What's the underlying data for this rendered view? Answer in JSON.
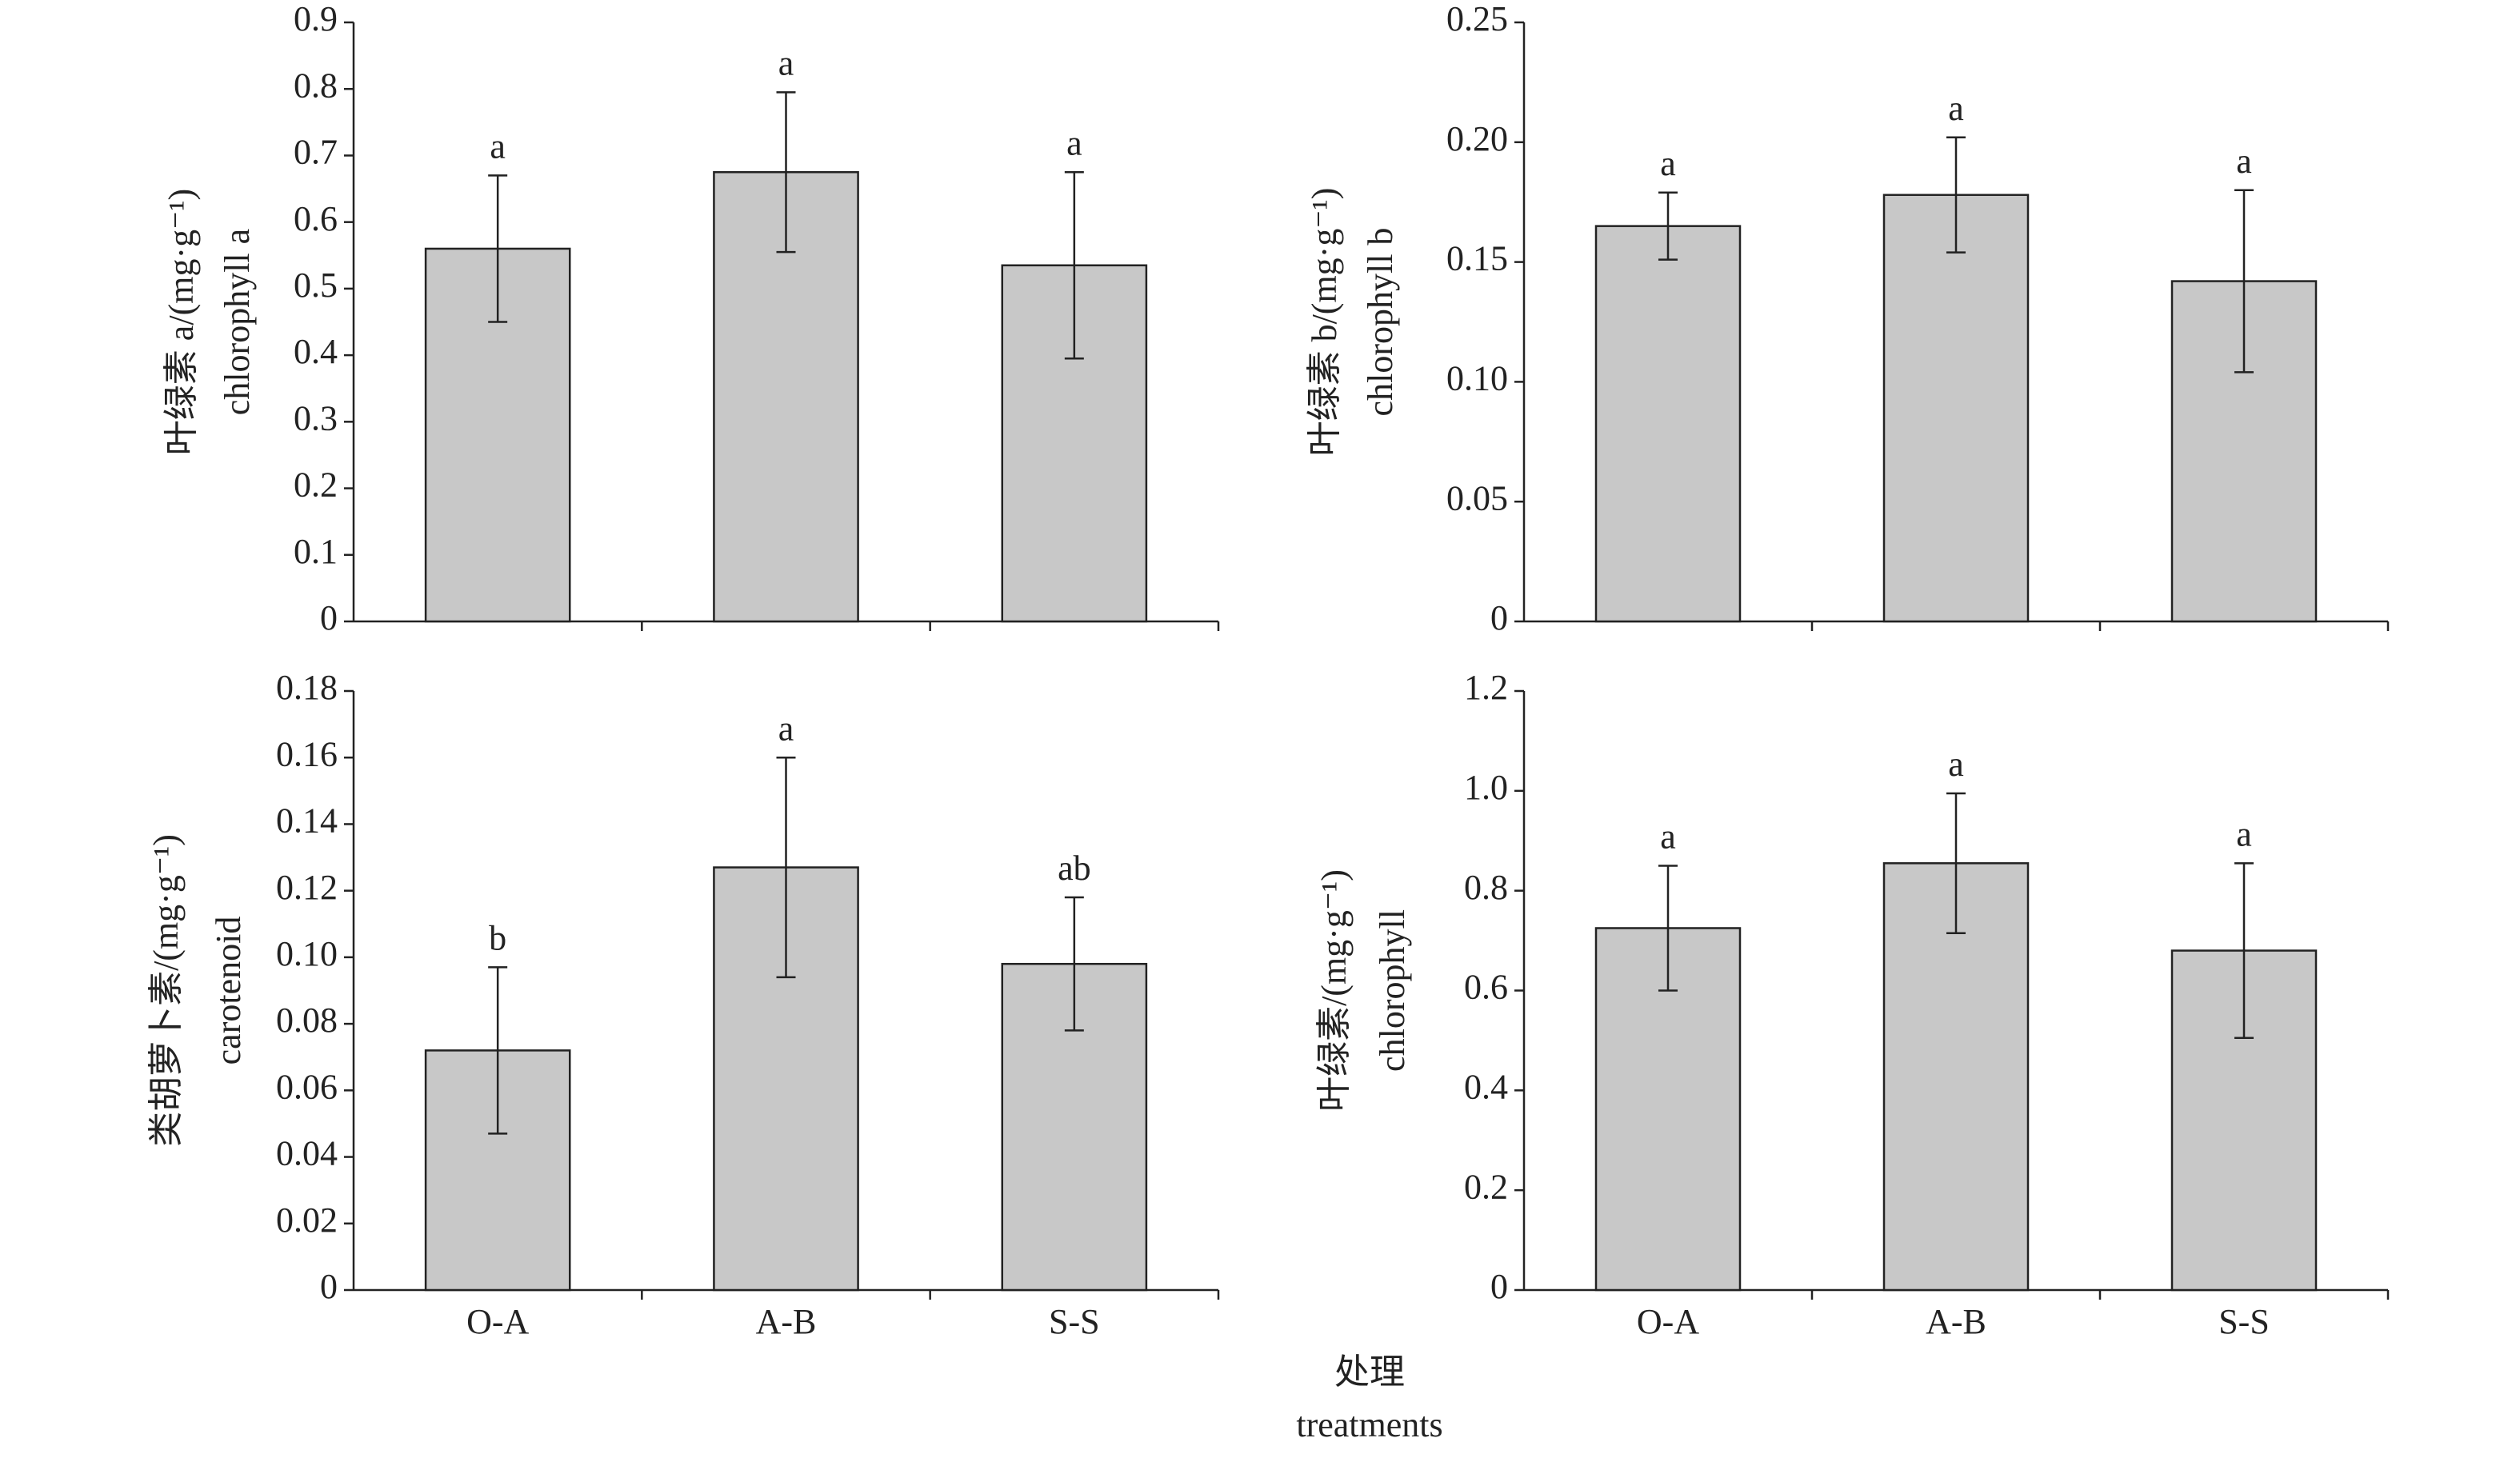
{
  "chart_data": [
    {
      "type": "bar",
      "ylabel_cn": "叶绿素 a/(mg·g⁻¹)",
      "ylabel_en": "chlorophyll a",
      "values": [
        0.56,
        0.675,
        0.535
      ],
      "errors": [
        0.11,
        0.12,
        0.14
      ],
      "letters": [
        "a",
        "a",
        "a"
      ],
      "color": "#c8c8c8",
      "ylim": [
        0,
        0.9
      ],
      "yticks": [
        0,
        0.1,
        0.2,
        0.3,
        0.4,
        0.5,
        0.6,
        0.7,
        0.8,
        0.9
      ]
    },
    {
      "type": "bar",
      "ylabel_cn": "叶绿素 b/(mg·g⁻¹)",
      "ylabel_en": "chlorophyll b",
      "values": [
        0.165,
        0.178,
        0.142
      ],
      "errors": [
        0.014,
        0.024,
        0.038
      ],
      "letters": [
        "a",
        "a",
        "a"
      ],
      "color": "#c8c8c8",
      "ylim": [
        0,
        0.25
      ],
      "yticks": [
        0,
        0.05,
        {
          "value": 0.1,
          "label": "0.10"
        },
        0.15,
        {
          "value": 0.2,
          "label": "0.20"
        },
        0.25
      ]
    },
    {
      "type": "bar",
      "ylabel_cn": "类胡萝卜素/(mg·g⁻¹)",
      "ylabel_en": "carotenoid",
      "categories": [
        "O-A",
        "A-B",
        "S-S"
      ],
      "values": [
        0.072,
        0.127,
        0.098
      ],
      "errors": [
        0.025,
        0.033,
        0.02
      ],
      "letters": [
        "b",
        "a",
        "ab"
      ],
      "color": "#c8c8c8",
      "ylim": [
        0,
        0.18
      ],
      "yticks": [
        0,
        0.02,
        0.04,
        0.06,
        0.08,
        {
          "value": 0.1,
          "label": "0.10"
        },
        0.12,
        0.14,
        0.16,
        0.18
      ]
    },
    {
      "type": "bar",
      "ylabel_cn": "叶绿素/(mg·g⁻¹)",
      "ylabel_en": "chlorophyll",
      "categories": [
        "O-A",
        "A-B",
        "S-S"
      ],
      "values": [
        0.725,
        0.855,
        0.68
      ],
      "errors": [
        0.125,
        0.14,
        0.175
      ],
      "letters": [
        "a",
        "a",
        "a"
      ],
      "color": "#c8c8c8",
      "ylim": [
        0,
        1.2
      ],
      "yticks": [
        0,
        0.2,
        0.4,
        0.6,
        0.8,
        {
          "value": 1,
          "label": "1.0"
        },
        1.2
      ]
    }
  ],
  "x_title_cn": "处理",
  "x_title_en": "treatments"
}
